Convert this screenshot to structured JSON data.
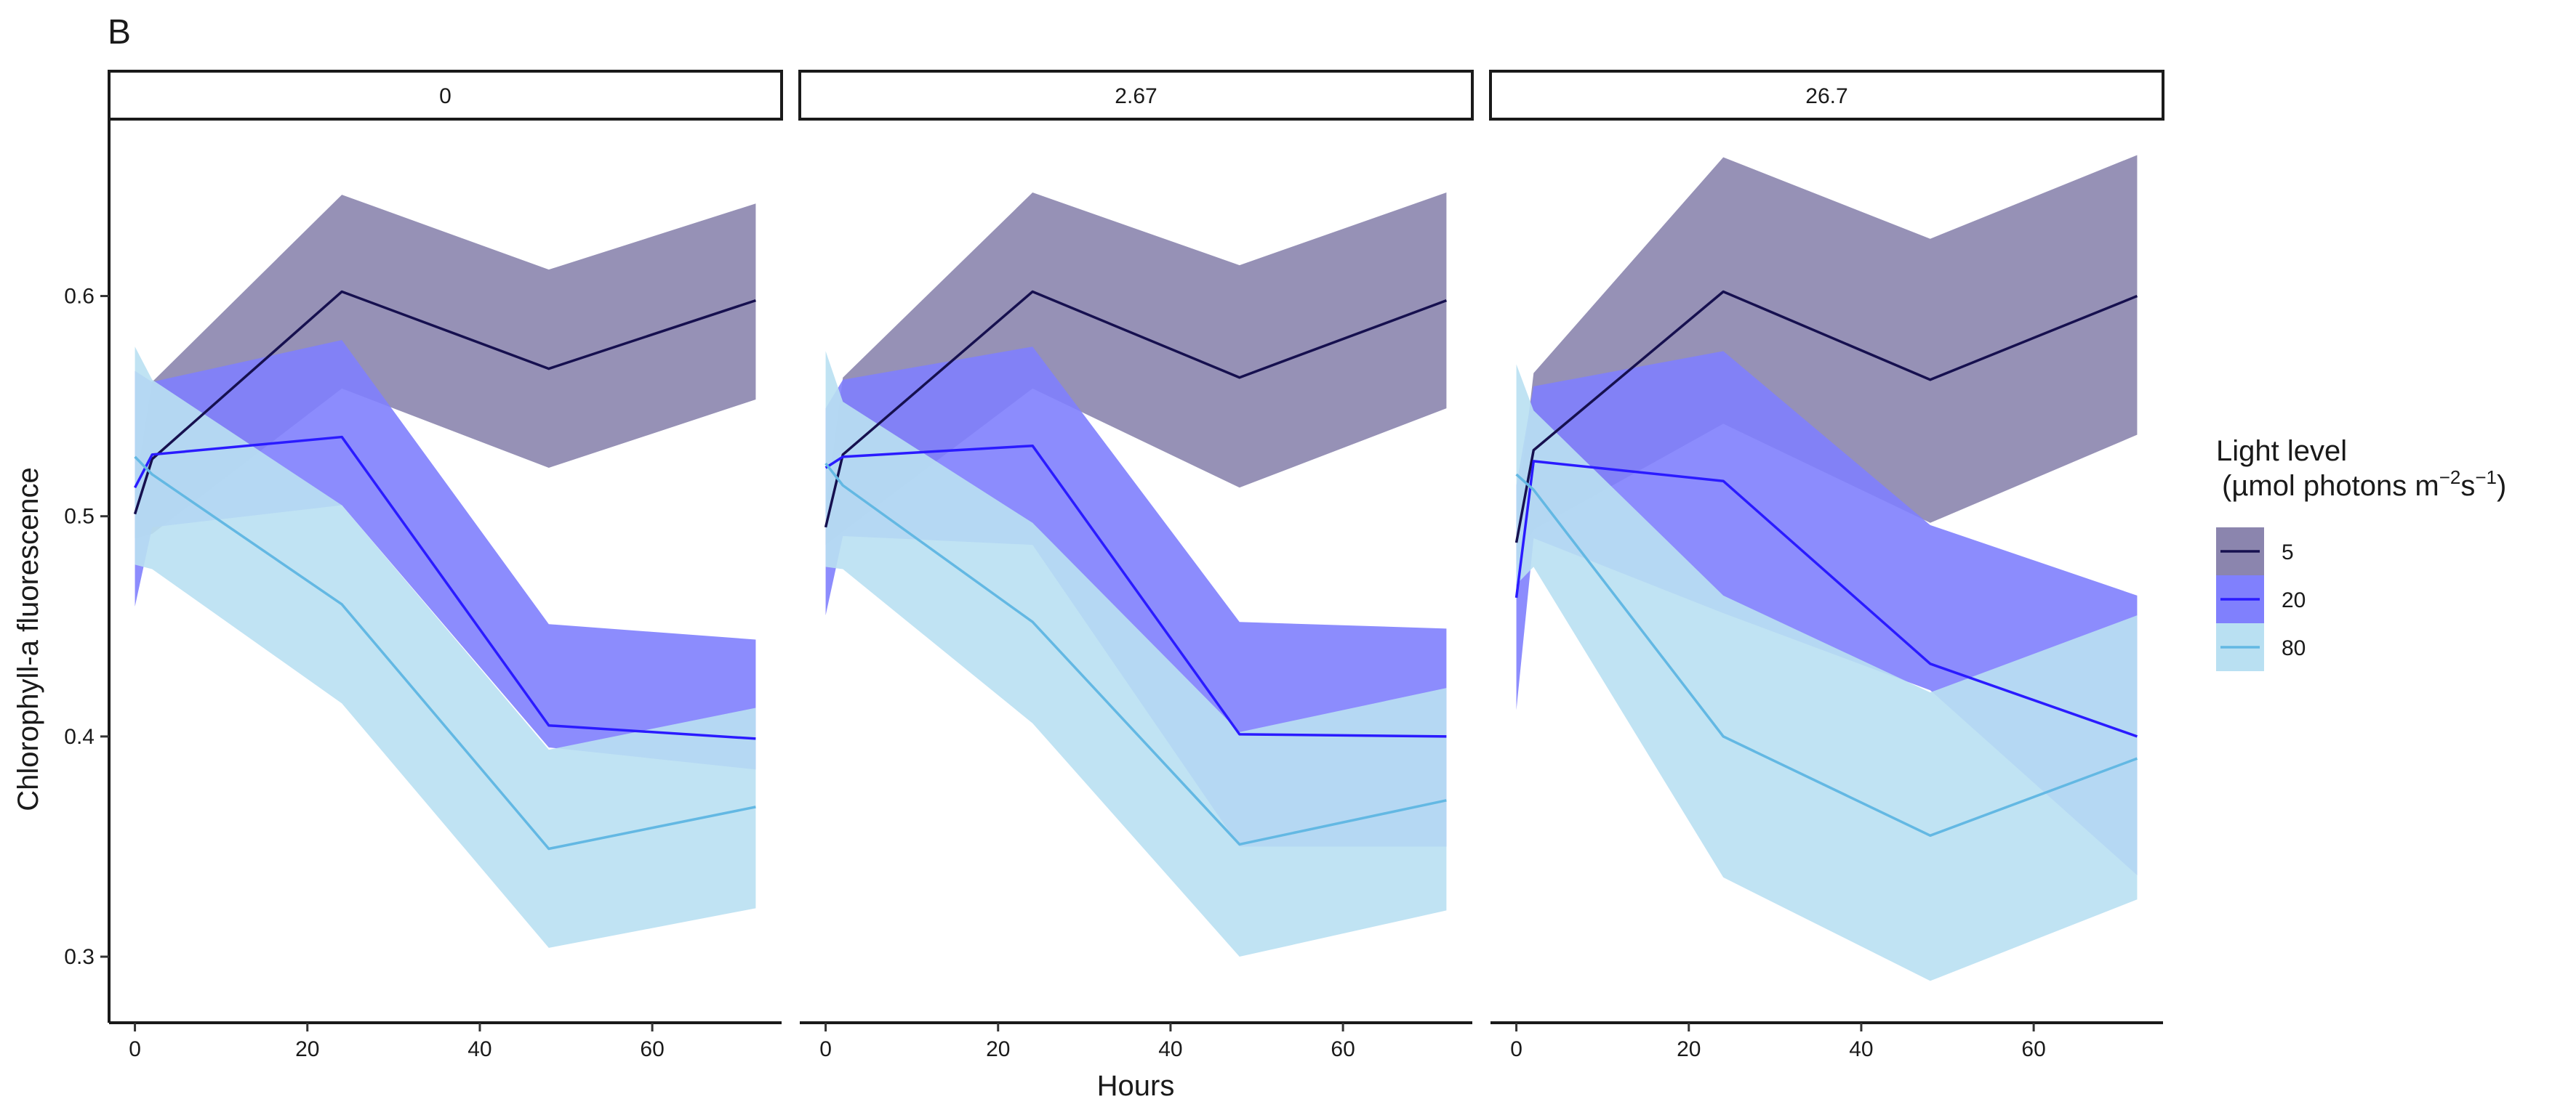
{
  "panel_label": "B",
  "colors": {
    "5": "#16104f",
    "20": "#2a1bff",
    "80": "#63b8e3",
    "ribbon_5": "#8b85ae",
    "ribbon_20": "#8080fd",
    "ribbon_80": "#b9e0f2"
  },
  "legend": {
    "title_line1": "Light level",
    "title_line2_prefix": "(µmol photons m",
    "title_sup1": "−2",
    "title_mid": "s",
    "title_sup2": "−1",
    "title_suffix": ")",
    "items": [
      "5",
      "20",
      "80"
    ]
  },
  "chart_data": {
    "type": "line",
    "xlabel": "Hours",
    "ylabel": "Chlorophyll-a fluorescence",
    "xlim": [
      -3,
      75
    ],
    "ylim": [
      0.27,
      0.68
    ],
    "x_ticks": [
      0,
      20,
      40,
      60
    ],
    "y_ticks": [
      0.3,
      0.4,
      0.5,
      0.6
    ],
    "x_tick_labels": [
      "0",
      "20",
      "40",
      "60"
    ],
    "y_tick_labels": [
      "0.3",
      "0.4",
      "0.5",
      "0.6"
    ],
    "x": [
      0,
      2,
      24,
      48,
      72
    ],
    "grid": false,
    "legend_position": "right",
    "facets": [
      {
        "label": "0",
        "series": [
          {
            "name": "5",
            "y": [
              0.501,
              0.526,
              0.602,
              0.567,
              0.598
            ],
            "lower": [
              0.49,
              0.492,
              0.558,
              0.522,
              0.553
            ],
            "upper": [
              0.512,
              0.561,
              0.646,
              0.612,
              0.642
            ]
          },
          {
            "name": "20",
            "y": [
              0.513,
              0.528,
              0.536,
              0.405,
              0.399
            ],
            "lower": [
              0.459,
              0.495,
              0.505,
              0.395,
              0.385
            ],
            "upper": [
              0.566,
              0.561,
              0.58,
              0.451,
              0.444
            ]
          },
          {
            "name": "80",
            "y": [
              0.527,
              0.519,
              0.46,
              0.349,
              0.368
            ],
            "lower": [
              0.478,
              0.476,
              0.415,
              0.304,
              0.322
            ],
            "upper": [
              0.577,
              0.562,
              0.505,
              0.394,
              0.413
            ]
          }
        ]
      },
      {
        "label": "2.67",
        "series": [
          {
            "name": "5",
            "y": [
              0.495,
              0.528,
              0.602,
              0.563,
              0.598
            ],
            "lower": [
              0.487,
              0.493,
              0.558,
              0.513,
              0.549
            ],
            "upper": [
              0.503,
              0.563,
              0.647,
              0.614,
              0.647
            ]
          },
          {
            "name": "20",
            "y": [
              0.522,
              0.527,
              0.532,
              0.401,
              0.4
            ],
            "lower": [
              0.455,
              0.491,
              0.487,
              0.35,
              0.35
            ],
            "upper": [
              0.549,
              0.562,
              0.577,
              0.452,
              0.449
            ]
          },
          {
            "name": "80",
            "y": [
              0.524,
              0.514,
              0.452,
              0.351,
              0.371
            ],
            "lower": [
              0.477,
              0.476,
              0.406,
              0.3,
              0.321
            ],
            "upper": [
              0.575,
              0.552,
              0.497,
              0.402,
              0.422
            ]
          }
        ]
      },
      {
        "label": "26.7",
        "series": [
          {
            "name": "5",
            "y": [
              0.488,
              0.53,
              0.602,
              0.562,
              0.6
            ],
            "lower": [
              0.478,
              0.494,
              0.542,
              0.497,
              0.537
            ],
            "upper": [
              0.498,
              0.565,
              0.663,
              0.626,
              0.664
            ]
          },
          {
            "name": "20",
            "y": [
              0.463,
              0.525,
              0.516,
              0.433,
              0.4
            ],
            "lower": [
              0.412,
              0.49,
              0.456,
              0.421,
              0.337
            ],
            "upper": [
              0.514,
              0.559,
              0.575,
              0.496,
              0.464
            ]
          },
          {
            "name": "80",
            "y": [
              0.519,
              0.512,
              0.4,
              0.355,
              0.39
            ],
            "lower": [
              0.469,
              0.477,
              0.336,
              0.289,
              0.326
            ],
            "upper": [
              0.569,
              0.548,
              0.464,
              0.42,
              0.455
            ]
          }
        ]
      }
    ]
  }
}
